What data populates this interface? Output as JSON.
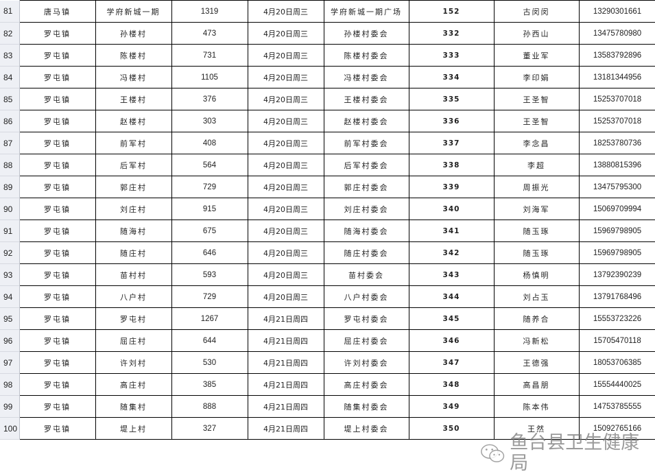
{
  "rows": [
    {
      "no": "81",
      "town": "唐马镇",
      "village": "学府新城一期",
      "count": "1319",
      "date": "4月20日周三",
      "site": "学府新城一期广场",
      "code": "152",
      "contact": "古闵闵",
      "phone": "13290301661"
    },
    {
      "no": "82",
      "town": "罗屯镇",
      "village": "孙楼村",
      "count": "473",
      "date": "4月20日周三",
      "site": "孙楼村委会",
      "code": "332",
      "contact": "孙西山",
      "phone": "13475780980"
    },
    {
      "no": "83",
      "town": "罗屯镇",
      "village": "陈楼村",
      "count": "731",
      "date": "4月20日周三",
      "site": "陈楼村委会",
      "code": "333",
      "contact": "董业军",
      "phone": "13583792896"
    },
    {
      "no": "84",
      "town": "罗屯镇",
      "village": "冯楼村",
      "count": "1105",
      "date": "4月20日周三",
      "site": "冯楼村委会",
      "code": "334",
      "contact": "李印娟",
      "phone": "13181344956"
    },
    {
      "no": "85",
      "town": "罗屯镇",
      "village": "王楼村",
      "count": "376",
      "date": "4月20日周三",
      "site": "王楼村委会",
      "code": "335",
      "contact": "王圣智",
      "phone": "15253707018"
    },
    {
      "no": "86",
      "town": "罗屯镇",
      "village": "赵楼村",
      "count": "303",
      "date": "4月20日周三",
      "site": "赵楼村委会",
      "code": "336",
      "contact": "王圣智",
      "phone": "15253707018"
    },
    {
      "no": "87",
      "town": "罗屯镇",
      "village": "前军村",
      "count": "408",
      "date": "4月20日周三",
      "site": "前军村委会",
      "code": "337",
      "contact": "李念昌",
      "phone": "18253780736"
    },
    {
      "no": "88",
      "town": "罗屯镇",
      "village": "后军村",
      "count": "564",
      "date": "4月20日周三",
      "site": "后军村委会",
      "code": "338",
      "contact": "李超",
      "phone": "13880815396"
    },
    {
      "no": "89",
      "town": "罗屯镇",
      "village": "郭庄村",
      "count": "729",
      "date": "4月20日周三",
      "site": "郭庄村委会",
      "code": "339",
      "contact": "周振光",
      "phone": "13475795300"
    },
    {
      "no": "90",
      "town": "罗屯镇",
      "village": "刘庄村",
      "count": "915",
      "date": "4月20日周三",
      "site": "刘庄村委会",
      "code": "340",
      "contact": "刘海军",
      "phone": "15069709994"
    },
    {
      "no": "91",
      "town": "罗屯镇",
      "village": "随海村",
      "count": "675",
      "date": "4月20日周三",
      "site": "随海村委会",
      "code": "341",
      "contact": "随玉琢",
      "phone": "15969798905"
    },
    {
      "no": "92",
      "town": "罗屯镇",
      "village": "随庄村",
      "count": "646",
      "date": "4月20日周三",
      "site": "随庄村委会",
      "code": "342",
      "contact": "随玉琢",
      "phone": "15969798905"
    },
    {
      "no": "93",
      "town": "罗屯镇",
      "village": "苗村村",
      "count": "593",
      "date": "4月20日周三",
      "site": "苗村委会",
      "code": "343",
      "contact": "杨慎明",
      "phone": "13792390239"
    },
    {
      "no": "94",
      "town": "罗屯镇",
      "village": "八户村",
      "count": "729",
      "date": "4月20日周三",
      "site": "八户村委会",
      "code": "344",
      "contact": "刘占玉",
      "phone": "13791768496"
    },
    {
      "no": "95",
      "town": "罗屯镇",
      "village": "罗屯村",
      "count": "1267",
      "date": "4月21日周四",
      "site": "罗屯村委会",
      "code": "345",
      "contact": "随养合",
      "phone": "15553723226"
    },
    {
      "no": "96",
      "town": "罗屯镇",
      "village": "屈庄村",
      "count": "644",
      "date": "4月21日周四",
      "site": "屈庄村委会",
      "code": "346",
      "contact": "冯新松",
      "phone": "15705470118"
    },
    {
      "no": "97",
      "town": "罗屯镇",
      "village": "许刘村",
      "count": "530",
      "date": "4月21日周四",
      "site": "许刘村委会",
      "code": "347",
      "contact": "王德强",
      "phone": "18053706385"
    },
    {
      "no": "98",
      "town": "罗屯镇",
      "village": "高庄村",
      "count": "385",
      "date": "4月21日周四",
      "site": "高庄村委会",
      "code": "348",
      "contact": "高昌朋",
      "phone": "15554440025"
    },
    {
      "no": "99",
      "town": "罗屯镇",
      "village": "随集村",
      "count": "888",
      "date": "4月21日周四",
      "site": "随集村委会",
      "code": "349",
      "contact": "陈本伟",
      "phone": "14753785555"
    },
    {
      "no": "100",
      "town": "罗屯镇",
      "village": "堤上村",
      "count": "327",
      "date": "4月21日周四",
      "site": "堤上村委会",
      "code": "350",
      "contact": "王然",
      "phone": "15092765166"
    }
  ],
  "watermark": {
    "text": "鱼台县卫生健康局",
    "icon": "wechat-icon"
  }
}
